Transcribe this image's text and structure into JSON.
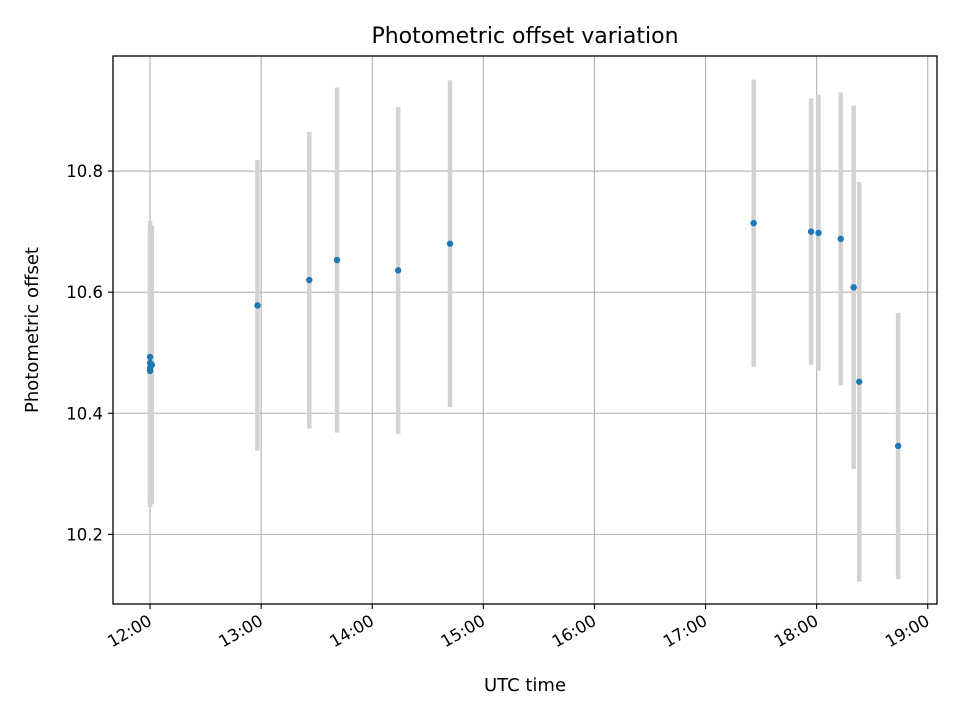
{
  "chart_data": {
    "type": "scatter",
    "title": "Photometric offset variation",
    "xlabel": "UTC time",
    "ylabel": "Photometric offset",
    "x_axis_type": "time",
    "xlim": [
      "11:40",
      "19:05"
    ],
    "ylim": [
      10.085,
      10.99
    ],
    "x_ticks": [
      "12:00",
      "13:00",
      "14:00",
      "15:00",
      "16:00",
      "17:00",
      "18:00",
      "19:00"
    ],
    "y_ticks": [
      "10.2",
      "10.4",
      "10.6",
      "10.8"
    ],
    "grid": true,
    "colors": {
      "marker": "#1f77b4",
      "errorbar": "#d3d3d3",
      "grid": "#b0b0b0"
    },
    "points": [
      {
        "x": "12:00",
        "y": 10.47,
        "err": 0.225
      },
      {
        "x": "12:00",
        "y": 10.475,
        "err": 0.22
      },
      {
        "x": "12:00",
        "y": 10.483,
        "err": 0.22
      },
      {
        "x": "12:00",
        "y": 10.493,
        "err": 0.225
      },
      {
        "x": "12:01",
        "y": 10.48,
        "err": 0.23
      },
      {
        "x": "12:58",
        "y": 10.578,
        "err": 0.24
      },
      {
        "x": "13:26",
        "y": 10.62,
        "err": 0.245
      },
      {
        "x": "13:41",
        "y": 10.653,
        "err": 0.285
      },
      {
        "x": "14:14",
        "y": 10.636,
        "err": 0.27
      },
      {
        "x": "14:42",
        "y": 10.68,
        "err": 0.27
      },
      {
        "x": "17:26",
        "y": 10.714,
        "err": 0.237
      },
      {
        "x": "17:57",
        "y": 10.7,
        "err": 0.22
      },
      {
        "x": "18:01",
        "y": 10.698,
        "err": 0.228
      },
      {
        "x": "18:13",
        "y": 10.688,
        "err": 0.242
      },
      {
        "x": "18:20",
        "y": 10.608,
        "err": 0.3
      },
      {
        "x": "18:23",
        "y": 10.452,
        "err": 0.33
      },
      {
        "x": "18:44",
        "y": 10.346,
        "err": 0.22
      }
    ]
  }
}
